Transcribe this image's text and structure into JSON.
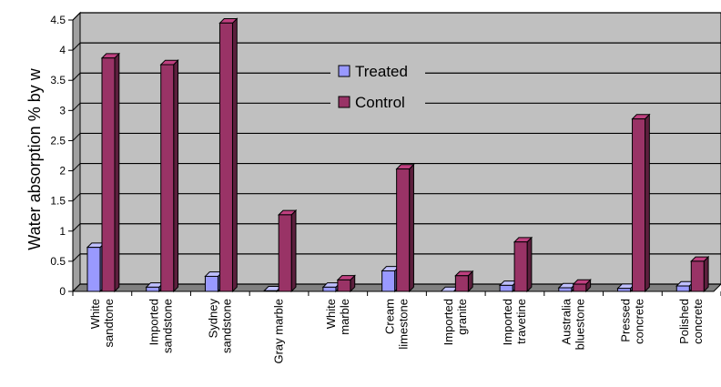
{
  "chart_data": {
    "type": "bar",
    "subtype": "3d-clustered-column",
    "ylabel": "Water absorption % by w",
    "xlabel": "",
    "ylim": [
      0,
      4.5
    ],
    "yticks": [
      "0",
      "0.5",
      "1",
      "1.5",
      "2",
      "2.5",
      "3",
      "3.5",
      "4",
      "4.5"
    ],
    "grid": true,
    "legend_position": "inside-top-center",
    "categories": [
      [
        "White",
        "sandtone"
      ],
      [
        "Imported",
        "sandstone"
      ],
      [
        "Sydney",
        "sandstone"
      ],
      [
        "Gray marble"
      ],
      [
        "White",
        "marble"
      ],
      [
        "Cream",
        "limestone"
      ],
      [
        "Imported",
        "granite"
      ],
      [
        "Imported",
        "travetine"
      ],
      [
        "Australia",
        "bluestone"
      ],
      [
        "Pressed",
        "concrete"
      ],
      [
        "Polished",
        "concrete"
      ]
    ],
    "series": [
      {
        "name": "Treated",
        "color": "#9999ff",
        "values": [
          0.73,
          0.07,
          0.25,
          0.01,
          0.07,
          0.34,
          0.0,
          0.1,
          0.06,
          0.05,
          0.09
        ]
      },
      {
        "name": "Control",
        "color": "#993366",
        "values": [
          3.87,
          3.76,
          4.45,
          1.27,
          0.19,
          2.03,
          0.26,
          0.82,
          0.12,
          2.86,
          0.5
        ]
      }
    ]
  },
  "colors": {
    "plot_back": "#c0c0c0",
    "plot_floor": "#808080",
    "wall_side": "#a0a0a0",
    "grid": "#000000"
  }
}
